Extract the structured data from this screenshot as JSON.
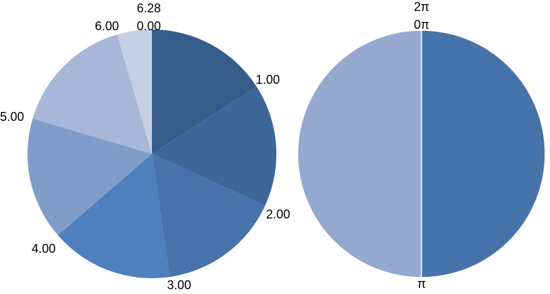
{
  "chart_data": [
    {
      "type": "pie",
      "categories": [
        "0.00–1.00",
        "1.00–2.00",
        "2.00–3.00",
        "3.00–4.00",
        "4.00–5.00",
        "5.00–6.00",
        "6.00–6.28"
      ],
      "values": [
        1.0,
        1.0,
        1.0,
        1.0,
        1.0,
        1.0,
        0.2832
      ],
      "boundary_labels": [
        "0.00",
        "1.00",
        "2.00",
        "3.00",
        "4.00",
        "5.00",
        "6.00",
        "6.28"
      ],
      "colors": [
        "#365c8a",
        "#3f6699",
        "#4873ab",
        "#4f80bd",
        "#809dca",
        "#a8b7d7",
        "#c6d0e5"
      ],
      "start_angle": "top (12 o'clock)",
      "direction": "clockwise",
      "title": ""
    },
    {
      "type": "pie",
      "categories": [
        "0π–π",
        "π–2π"
      ],
      "values": [
        1,
        1
      ],
      "boundary_labels": [
        "2π",
        "0π",
        "π"
      ],
      "colors": [
        "#4673a9",
        "#94a8d0"
      ],
      "start_angle": "top (12 o'clock)",
      "direction": "clockwise",
      "title": ""
    }
  ]
}
